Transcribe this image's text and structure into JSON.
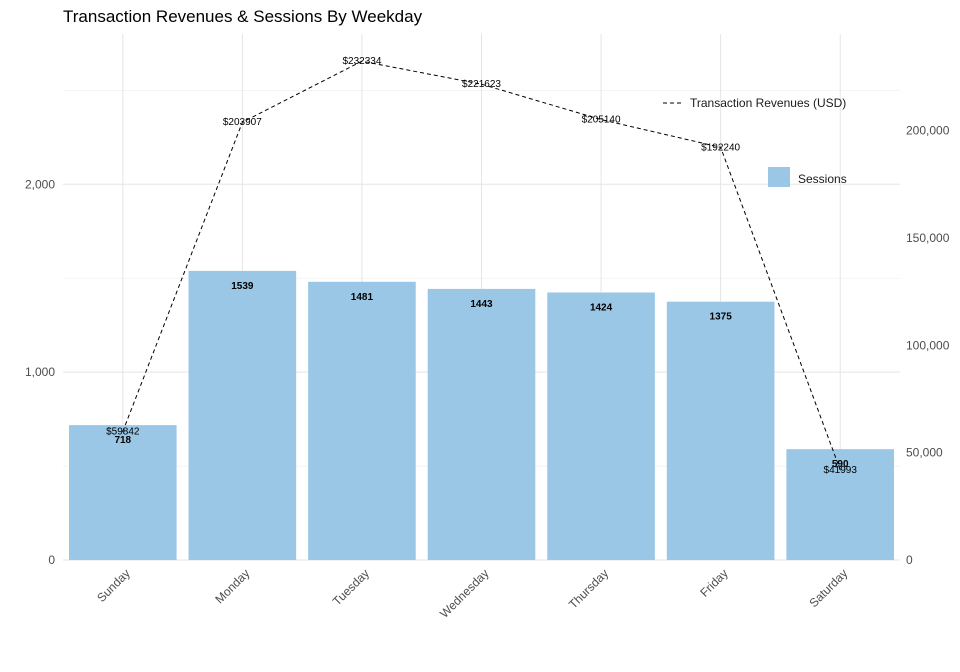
{
  "chart_data": {
    "type": "bar",
    "title": "Transaction Revenues & Sessions By Weekday",
    "categories": [
      "Sunday",
      "Monday",
      "Tuesday",
      "Wednesday",
      "Thursday",
      "Friday",
      "Saturday"
    ],
    "series": [
      {
        "name": "Sessions",
        "type": "bar",
        "axis": "left",
        "color": "#9ac7e6",
        "values": [
          718,
          1539,
          1481,
          1443,
          1424,
          1375,
          590
        ],
        "labels": [
          "718",
          "1539",
          "1481",
          "1443",
          "1424",
          "1375",
          "590"
        ]
      },
      {
        "name": "Transaction Revenues (USD)",
        "type": "line",
        "line_style": "dashed",
        "axis": "right",
        "color": "#000000",
        "values": [
          59842,
          203907,
          232334,
          221623,
          205140,
          192240,
          41993
        ],
        "labels": [
          "$59842",
          "$203907",
          "$232334",
          "$221623",
          "$205140",
          "$192240",
          "$41993"
        ]
      }
    ],
    "y_left": {
      "range": [
        0,
        2800
      ],
      "ticks": [
        0,
        1000,
        2000
      ],
      "tick_labels": [
        "0",
        "1,000",
        "2,000"
      ]
    },
    "y_right": {
      "range": [
        0,
        245000
      ],
      "ticks": [
        0,
        50000,
        100000,
        150000,
        200000
      ],
      "tick_labels": [
        "0",
        "50,000",
        "100,000",
        "150,000",
        "200,000"
      ]
    },
    "x_tick_rotation": "45 degrees",
    "grid": true,
    "legend_position": "right"
  }
}
